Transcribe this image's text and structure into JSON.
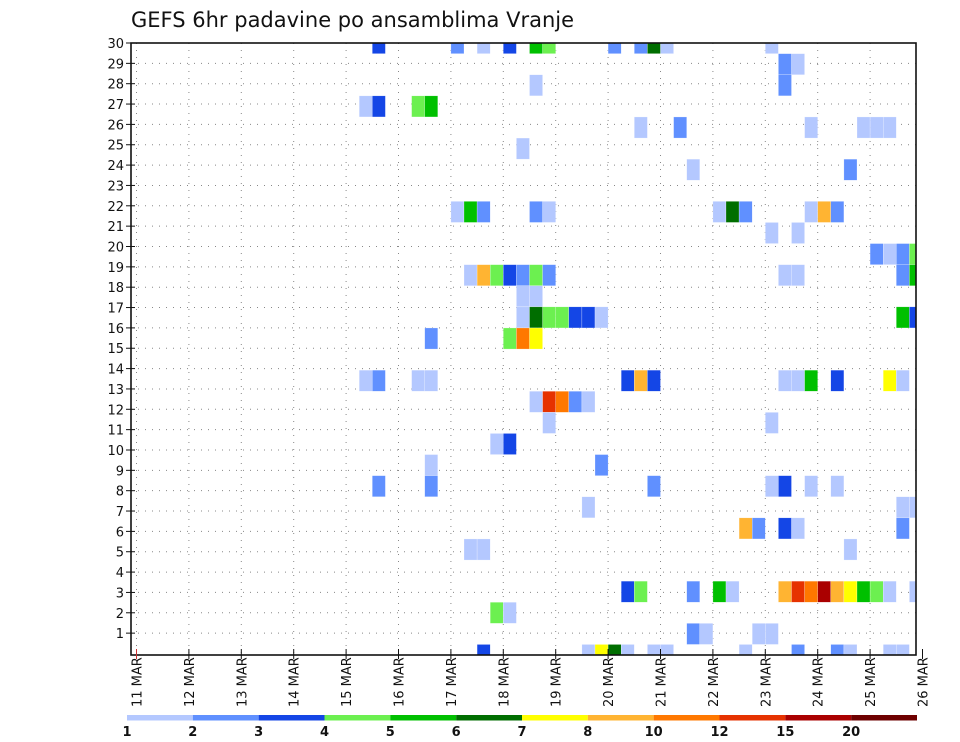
{
  "chart_data": {
    "type": "heatmap",
    "title": "GEFS 6hr padavine po ansamblima Vranje",
    "xlabel": "",
    "ylabel": "",
    "x_unit": "6-hour step starting 11 MAR",
    "x_tick_labels": [
      "11 MAR",
      "12 MAR",
      "13 MAR",
      "14 MAR",
      "15 MAR",
      "16 MAR",
      "17 MAR",
      "18 MAR",
      "19 MAR",
      "20 MAR",
      "21 MAR",
      "22 MAR",
      "23 MAR",
      "24 MAR",
      "25 MAR",
      "26 MAR"
    ],
    "y_ticks": [
      1,
      2,
      3,
      4,
      5,
      6,
      7,
      8,
      9,
      10,
      11,
      12,
      13,
      14,
      15,
      16,
      17,
      18,
      19,
      20,
      21,
      22,
      23,
      24,
      25,
      26,
      27,
      28,
      29,
      30
    ],
    "grid": true,
    "legend": {
      "placement": "bottom",
      "labels": [
        "1",
        "2",
        "3",
        "4",
        "5",
        "6",
        "7",
        "8",
        "10",
        "12",
        "15",
        "20"
      ],
      "colors": [
        "#b4c8ff",
        "#6090ff",
        "#1446e6",
        "#6cf050",
        "#00c000",
        "#006e00",
        "#ffff00",
        "#ffb432",
        "#ff7800",
        "#e63200",
        "#aa0000",
        "#6e0000"
      ]
    },
    "cells_format": "[time_step, ensemble_member, color_class (1-12, from legend)]",
    "cells": [
      [
        18,
        29,
        3
      ],
      [
        24,
        29,
        2
      ],
      [
        26,
        29,
        1
      ],
      [
        28,
        29,
        3
      ],
      [
        30,
        29,
        5
      ],
      [
        31,
        29,
        4
      ],
      [
        36,
        29,
        2
      ],
      [
        38,
        29,
        2
      ],
      [
        39,
        29,
        6
      ],
      [
        40,
        29,
        1
      ],
      [
        48,
        29,
        1
      ],
      [
        49,
        28,
        2
      ],
      [
        50,
        28,
        1
      ],
      [
        30,
        27,
        1
      ],
      [
        49,
        27,
        2
      ],
      [
        17,
        26,
        1
      ],
      [
        18,
        26,
        3
      ],
      [
        21,
        26,
        4
      ],
      [
        22,
        26,
        5
      ],
      [
        38,
        25,
        1
      ],
      [
        41,
        25,
        2
      ],
      [
        51,
        25,
        1
      ],
      [
        55,
        25,
        1
      ],
      [
        56,
        25,
        1
      ],
      [
        57,
        25,
        1
      ],
      [
        29,
        24,
        1
      ],
      [
        42,
        23,
        1
      ],
      [
        54,
        23,
        2
      ],
      [
        24,
        21,
        1
      ],
      [
        25,
        21,
        5
      ],
      [
        26,
        21,
        2
      ],
      [
        30,
        21,
        2
      ],
      [
        31,
        21,
        1
      ],
      [
        44,
        21,
        1
      ],
      [
        45,
        21,
        6
      ],
      [
        46,
        21,
        2
      ],
      [
        51,
        21,
        1
      ],
      [
        52,
        21,
        8
      ],
      [
        53,
        21,
        2
      ],
      [
        48,
        20,
        1
      ],
      [
        50,
        20,
        1
      ],
      [
        56,
        19,
        2
      ],
      [
        57,
        19,
        1
      ],
      [
        58,
        19,
        2
      ],
      [
        59,
        19,
        4
      ],
      [
        25,
        18,
        1
      ],
      [
        26,
        18,
        8
      ],
      [
        27,
        18,
        4
      ],
      [
        28,
        18,
        3
      ],
      [
        29,
        18,
        2
      ],
      [
        30,
        18,
        4
      ],
      [
        31,
        18,
        2
      ],
      [
        49,
        18,
        1
      ],
      [
        50,
        18,
        1
      ],
      [
        58,
        18,
        2
      ],
      [
        59,
        18,
        5
      ],
      [
        29,
        17,
        1
      ],
      [
        30,
        17,
        1
      ],
      [
        29,
        16,
        1
      ],
      [
        30,
        16,
        6
      ],
      [
        31,
        16,
        4
      ],
      [
        32,
        16,
        4
      ],
      [
        33,
        16,
        3
      ],
      [
        34,
        16,
        3
      ],
      [
        35,
        16,
        1
      ],
      [
        58,
        16,
        5
      ],
      [
        59,
        16,
        3
      ],
      [
        22,
        15,
        2
      ],
      [
        28,
        15,
        4
      ],
      [
        29,
        15,
        9
      ],
      [
        30,
        15,
        7
      ],
      [
        17,
        13,
        1
      ],
      [
        18,
        13,
        2
      ],
      [
        21,
        13,
        1
      ],
      [
        22,
        13,
        1
      ],
      [
        37,
        13,
        3
      ],
      [
        38,
        13,
        8
      ],
      [
        39,
        13,
        3
      ],
      [
        49,
        13,
        1
      ],
      [
        50,
        13,
        1
      ],
      [
        51,
        13,
        5
      ],
      [
        53,
        13,
        3
      ],
      [
        57,
        13,
        7
      ],
      [
        58,
        13,
        1
      ],
      [
        30,
        12,
        1
      ],
      [
        31,
        12,
        10
      ],
      [
        32,
        12,
        9
      ],
      [
        33,
        12,
        2
      ],
      [
        34,
        12,
        1
      ],
      [
        31,
        11,
        1
      ],
      [
        48,
        11,
        1
      ],
      [
        27,
        10,
        1
      ],
      [
        28,
        10,
        3
      ],
      [
        22,
        9,
        1
      ],
      [
        35,
        9,
        2
      ],
      [
        18,
        8,
        2
      ],
      [
        22,
        8,
        2
      ],
      [
        39,
        8,
        2
      ],
      [
        48,
        8,
        1
      ],
      [
        49,
        8,
        3
      ],
      [
        51,
        8,
        1
      ],
      [
        53,
        8,
        1
      ],
      [
        34,
        7,
        1
      ],
      [
        58,
        7,
        1
      ],
      [
        59,
        7,
        1
      ],
      [
        46,
        6,
        8
      ],
      [
        47,
        6,
        2
      ],
      [
        49,
        6,
        3
      ],
      [
        50,
        6,
        1
      ],
      [
        58,
        6,
        2
      ],
      [
        25,
        5,
        1
      ],
      [
        26,
        5,
        1
      ],
      [
        54,
        5,
        1
      ],
      [
        37,
        3,
        3
      ],
      [
        38,
        3,
        4
      ],
      [
        42,
        3,
        2
      ],
      [
        44,
        3,
        5
      ],
      [
        45,
        3,
        1
      ],
      [
        49,
        3,
        8
      ],
      [
        50,
        3,
        10
      ],
      [
        51,
        3,
        9
      ],
      [
        52,
        3,
        11
      ],
      [
        53,
        3,
        8
      ],
      [
        54,
        3,
        7
      ],
      [
        55,
        3,
        5
      ],
      [
        56,
        3,
        4
      ],
      [
        57,
        3,
        1
      ],
      [
        59,
        3,
        1
      ],
      [
        27,
        2,
        4
      ],
      [
        28,
        2,
        1
      ],
      [
        42,
        1,
        2
      ],
      [
        43,
        1,
        1
      ],
      [
        47,
        1,
        1
      ],
      [
        48,
        1,
        1
      ],
      [
        26,
        0,
        3
      ],
      [
        34,
        0,
        1
      ],
      [
        35,
        0,
        7
      ],
      [
        36,
        0,
        6
      ],
      [
        37,
        0,
        1
      ],
      [
        39,
        0,
        1
      ],
      [
        40,
        0,
        1
      ],
      [
        46,
        0,
        1
      ],
      [
        50,
        0,
        2
      ],
      [
        53,
        0,
        2
      ],
      [
        54,
        0,
        1
      ],
      [
        57,
        0,
        1
      ],
      [
        58,
        0,
        1
      ]
    ]
  }
}
